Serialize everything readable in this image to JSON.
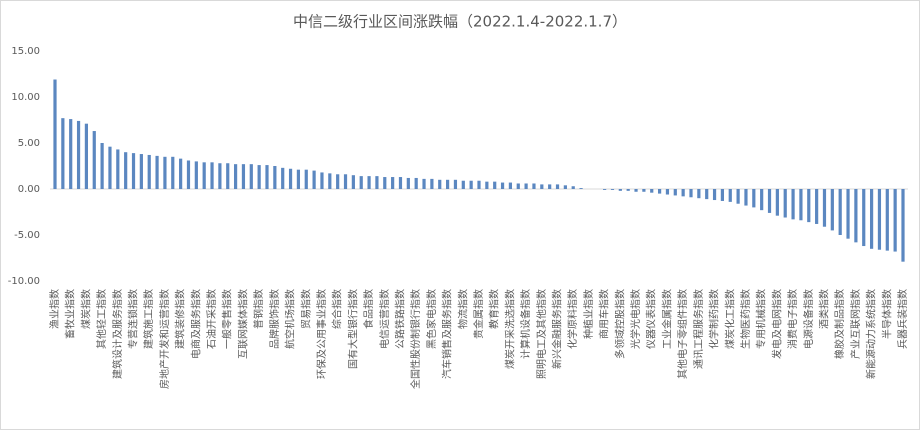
{
  "chart_data": {
    "type": "bar",
    "title": "中信二级行业区间涨跌幅（2022.1.4-2022.1.7）",
    "categories": [
      "渔业指数",
      null,
      "畜牧业指数",
      null,
      "煤炭指数",
      null,
      "其他轻工指数",
      null,
      "建筑设计及服务指数",
      null,
      "专营连锁指数",
      null,
      "建筑施工指数",
      null,
      "房地产开发和运营指数",
      null,
      "建筑装修指数",
      null,
      "电商及服务指数",
      null,
      "石油开采指数",
      null,
      "一般零售指数",
      null,
      "互联网媒体指数",
      null,
      "普钢指数",
      null,
      "品牌服饰指数",
      null,
      "航空机场指数",
      null,
      "贸易指数",
      null,
      "环保及公用事业指数",
      null,
      "综合指数",
      null,
      "国有大型银行指数",
      null,
      "食品指数",
      null,
      "电信运营指数",
      null,
      "公路铁路指数",
      null,
      "全国性股份制银行指数",
      null,
      "黑色家电指数",
      null,
      "汽车销售及服务指数",
      null,
      "物流指数",
      null,
      "贵金属指数",
      null,
      "教育指数",
      null,
      "煤炭开采洗选指数",
      null,
      "计算机设备指数",
      null,
      "照明电工及其他指数",
      null,
      "新兴金融服务指数",
      null,
      "化学原料指数",
      null,
      "种植业指数",
      null,
      "商用车指数",
      null,
      "多领域控股指数",
      null,
      "光学光电指数",
      null,
      "仪器仪表指数",
      null,
      "工业金属指数",
      null,
      "其他电子零组件指数",
      null,
      "通讯工程服务指数",
      null,
      "化学制药指数",
      null,
      "煤炭化工指数",
      null,
      "生物医药指数",
      null,
      "专用机械指数",
      null,
      "发电及电网指数",
      null,
      "消费电子指数",
      null,
      "电源设备指数",
      null,
      "酒类指数",
      null,
      "橡胶及制品指数",
      null,
      "产业互联网指数",
      null,
      "新能源动力系统指数",
      null,
      "半导体指数",
      null,
      "兵器兵装指数"
    ],
    "values": [
      11.9,
      7.7,
      7.6,
      7.4,
      7.1,
      6.3,
      5.0,
      4.6,
      4.3,
      4.0,
      3.9,
      3.8,
      3.7,
      3.6,
      3.5,
      3.5,
      3.3,
      3.1,
      3.0,
      2.9,
      2.9,
      2.8,
      2.8,
      2.7,
      2.7,
      2.7,
      2.6,
      2.6,
      2.5,
      2.3,
      2.2,
      2.1,
      2.1,
      2.0,
      1.8,
      1.7,
      1.6,
      1.6,
      1.5,
      1.4,
      1.4,
      1.4,
      1.3,
      1.3,
      1.3,
      1.2,
      1.2,
      1.1,
      1.1,
      1.0,
      1.0,
      1.0,
      0.9,
      0.9,
      0.9,
      0.8,
      0.8,
      0.7,
      0.7,
      0.6,
      0.6,
      0.6,
      0.5,
      0.5,
      0.5,
      0.4,
      0.3,
      0.1,
      0.0,
      0.0,
      -0.1,
      -0.1,
      -0.2,
      -0.2,
      -0.3,
      -0.3,
      -0.4,
      -0.5,
      -0.6,
      -0.7,
      -0.8,
      -0.9,
      -1.0,
      -1.1,
      -1.2,
      -1.3,
      -1.4,
      -1.6,
      -1.8,
      -2.0,
      -2.3,
      -2.6,
      -2.9,
      -3.1,
      -3.3,
      -3.4,
      -3.6,
      -3.8,
      -4.1,
      -4.5,
      -5.0,
      -5.4,
      -5.8,
      -6.2,
      -6.5,
      -6.6,
      -6.7,
      -6.8,
      -7.9
    ],
    "color": "#5b87c0",
    "ylim": [
      -10,
      15
    ],
    "yticks": [
      {
        "value": -10,
        "label": "-10.00"
      },
      {
        "value": -5,
        "label": "-5.00"
      },
      {
        "value": 0,
        "label": "0.00"
      },
      {
        "value": 5,
        "label": "5.00"
      },
      {
        "value": 10,
        "label": "10.00"
      },
      {
        "value": 15,
        "label": "15.00"
      }
    ],
    "grid": false
  }
}
